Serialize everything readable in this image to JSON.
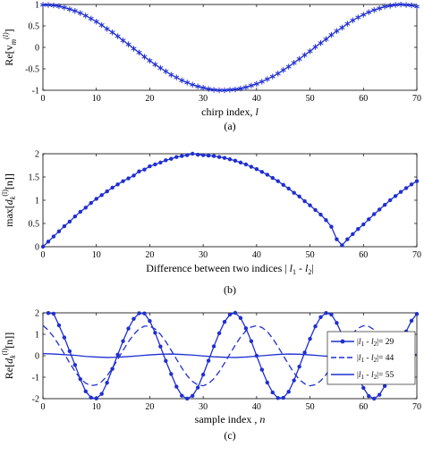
{
  "chart_data": [
    {
      "type": "line",
      "x_range": [
        0,
        70
      ],
      "ylim": [
        -1,
        1
      ],
      "xticks": [
        "0",
        "10",
        "20",
        "30",
        "40",
        "50",
        "60",
        "70"
      ],
      "yticks": [
        "-1",
        "-0.5",
        "0",
        "0.5",
        "1"
      ],
      "xlabel": "chirp index,",
      "xlabel_var": "l",
      "ylabel": "Re[v",
      "ylabel_sub": "m",
      "ylabel_sup": "(l)",
      "ylabel_end": "]",
      "caption": "(a)",
      "marker": "asterisk",
      "color": "#1f2fd1",
      "series": [
        {
          "x": [
            0,
            1,
            2,
            3,
            4,
            5,
            6,
            7,
            8,
            9,
            10,
            11,
            12,
            13,
            14,
            15,
            16,
            17,
            18,
            19,
            20,
            21,
            22,
            23,
            24,
            25,
            26,
            27,
            28,
            29,
            30,
            31,
            32,
            33,
            34,
            35,
            36,
            37,
            38,
            39,
            40,
            41,
            42,
            43,
            44,
            45,
            46,
            47,
            48,
            49,
            50,
            51,
            52,
            53,
            54,
            55,
            56,
            57,
            58,
            59,
            60,
            61,
            62,
            63,
            64,
            65,
            66,
            67,
            68,
            69,
            70
          ],
          "values": [
            0.99,
            0.99,
            0.98,
            0.96,
            0.93,
            0.89,
            0.85,
            0.8,
            0.74,
            0.67,
            0.6,
            0.52,
            0.43,
            0.35,
            0.26,
            0.16,
            0.07,
            -0.03,
            -0.12,
            -0.22,
            -0.31,
            -0.4,
            -0.48,
            -0.56,
            -0.64,
            -0.7,
            -0.77,
            -0.82,
            -0.87,
            -0.91,
            -0.94,
            -0.97,
            -0.99,
            -1.0,
            -1.0,
            -0.99,
            -0.98,
            -0.96,
            -0.93,
            -0.89,
            -0.85,
            -0.8,
            -0.74,
            -0.68,
            -0.61,
            -0.53,
            -0.45,
            -0.36,
            -0.27,
            -0.18,
            -0.09,
            0.01,
            0.1,
            0.19,
            0.29,
            0.38,
            0.46,
            0.55,
            0.63,
            0.7,
            0.76,
            0.82,
            0.87,
            0.91,
            0.95,
            0.97,
            0.99,
            1.0,
            0.99,
            0.98,
            0.95
          ]
        }
      ]
    },
    {
      "type": "line",
      "x_range": [
        0,
        70
      ],
      "ylim": [
        0,
        2
      ],
      "xticks": [
        "0",
        "10",
        "20",
        "30",
        "40",
        "50",
        "60",
        "70"
      ],
      "yticks": [
        "0",
        "0.5",
        "1",
        "1.5",
        "2"
      ],
      "xlabel": "Difference between two indices |",
      "xlabel_mid": " - ",
      "xlabel_var1": "l",
      "xlabel_sub1": "1",
      "xlabel_var2": "l",
      "xlabel_sub2": "2",
      "xlabel_end": "|",
      "ylabel": "max[",
      "ylabel_var": "d",
      "ylabel_sub": "k",
      "ylabel_sup": "(l)",
      "ylabel_end": "[n]]",
      "caption": "(b)",
      "marker": "dot",
      "color": "#1f2fd1",
      "series": [
        {
          "x": [
            0,
            1,
            2,
            3,
            4,
            5,
            6,
            7,
            8,
            9,
            10,
            11,
            12,
            13,
            14,
            15,
            16,
            17,
            18,
            19,
            20,
            21,
            22,
            23,
            24,
            25,
            26,
            27,
            28,
            29,
            30,
            31,
            32,
            33,
            34,
            35,
            36,
            37,
            38,
            39,
            40,
            41,
            42,
            43,
            44,
            45,
            46,
            47,
            48,
            49,
            50,
            51,
            52,
            53,
            54,
            55,
            56,
            57,
            58,
            59,
            60,
            61,
            62,
            63,
            64,
            65,
            66,
            67,
            68,
            69,
            70
          ],
          "values": [
            0.0,
            0.11,
            0.22,
            0.33,
            0.44,
            0.54,
            0.65,
            0.75,
            0.84,
            0.94,
            1.03,
            1.11,
            1.19,
            1.27,
            1.34,
            1.41,
            1.47,
            1.53,
            1.62,
            1.66,
            1.73,
            1.77,
            1.81,
            1.86,
            1.89,
            1.93,
            1.95,
            1.97,
            2.0,
            1.98,
            1.97,
            1.96,
            1.95,
            1.93,
            1.91,
            1.88,
            1.85,
            1.81,
            1.77,
            1.72,
            1.67,
            1.61,
            1.55,
            1.48,
            1.41,
            1.33,
            1.25,
            1.16,
            1.08,
            0.98,
            0.89,
            0.79,
            0.69,
            0.57,
            0.43,
            0.16,
            0.03,
            0.16,
            0.27,
            0.38,
            0.48,
            0.59,
            0.7,
            0.8,
            0.9,
            1.0,
            1.09,
            1.18,
            1.26,
            1.34,
            1.41
          ]
        }
      ]
    },
    {
      "type": "line",
      "x_range": [
        0,
        70
      ],
      "ylim": [
        -2,
        2
      ],
      "xticks": [
        "0",
        "10",
        "20",
        "30",
        "40",
        "50",
        "60",
        "70"
      ],
      "yticks": [
        "-2",
        "-1",
        "0",
        "1",
        "2"
      ],
      "xlabel": "sample index ,",
      "xlabel_var": "n",
      "ylabel": "Re[",
      "ylabel_var": "d",
      "ylabel_sub": "k",
      "ylabel_sup": "(l)",
      "ylabel_end": "[n]]",
      "caption": "(c)",
      "color": "#1f2fd1",
      "legend_position": "right",
      "series": [
        {
          "legend_value": "= 29",
          "style": "solid-dot",
          "x": [
            1,
            2,
            3,
            4,
            5,
            6,
            7,
            8,
            9,
            10,
            11,
            12,
            13,
            14,
            15,
            16,
            17,
            18,
            19,
            20,
            21,
            22,
            23,
            24,
            25,
            26,
            27,
            28,
            29,
            30,
            31,
            32,
            33,
            34,
            35,
            36,
            37,
            38,
            39,
            40,
            41,
            42,
            43,
            44,
            45,
            46,
            47,
            48,
            49,
            50,
            51,
            52,
            53,
            54,
            55,
            56,
            57,
            58,
            59,
            60,
            61,
            62,
            63,
            64,
            65,
            66,
            67,
            68,
            69,
            70
          ],
          "values": [
            1.99,
            1.96,
            1.42,
            0.85,
            0.21,
            -0.43,
            -1.09,
            -1.66,
            -1.95,
            -1.99,
            -1.78,
            -1.26,
            -0.61,
            0.05,
            0.68,
            1.27,
            1.72,
            1.98,
            1.97,
            1.62,
            1.07,
            0.43,
            -0.24,
            -0.85,
            -1.44,
            -1.86,
            -2.0,
            -1.87,
            -1.48,
            -0.88,
            -0.23,
            0.44,
            1.05,
            1.58,
            1.92,
            2.0,
            1.76,
            1.28,
            0.68,
            0.0,
            -0.65,
            -1.25,
            -1.71,
            -1.97,
            -1.96,
            -1.68,
            -1.15,
            -0.51,
            0.15,
            0.79,
            1.37,
            1.8,
            1.99,
            1.92,
            1.53,
            0.98,
            0.33,
            -0.34,
            -0.97,
            -1.5,
            -1.88,
            -2.0,
            -1.82,
            -1.41,
            -0.8,
            -0.13,
            0.53,
            1.13,
            1.63,
            1.95
          ]
        },
        {
          "legend_value": "= 44",
          "style": "dashed",
          "x": [
            0,
            1,
            2,
            3,
            4,
            5,
            6,
            7,
            8,
            9,
            10,
            11,
            12,
            13,
            14,
            15,
            16,
            17,
            18,
            19,
            20,
            21,
            22,
            23,
            24,
            25,
            26,
            27,
            28,
            29,
            30,
            31,
            32,
            33,
            34,
            35,
            36,
            37,
            38,
            39,
            40,
            41,
            42,
            43,
            44,
            45,
            46,
            47,
            48,
            49,
            50,
            51,
            52,
            53,
            54,
            55,
            56,
            57,
            58,
            59,
            60,
            61,
            62,
            63,
            64,
            65,
            66,
            67,
            68,
            69,
            70
          ],
          "values": [
            1.41,
            1.19,
            0.88,
            0.5,
            0.09,
            -0.33,
            -0.73,
            -1.06,
            -1.28,
            -1.39,
            -1.36,
            -1.21,
            -0.94,
            -0.58,
            -0.17,
            0.25,
            0.65,
            0.99,
            1.25,
            1.38,
            1.38,
            1.25,
            1.0,
            0.66,
            0.26,
            -0.16,
            -0.57,
            -0.93,
            -1.2,
            -1.36,
            -1.4,
            -1.3,
            -1.07,
            -0.74,
            -0.34,
            0.08,
            0.49,
            0.87,
            1.16,
            1.34,
            1.4,
            1.32,
            1.13,
            0.81,
            0.43,
            0.01,
            -0.41,
            -0.8,
            -1.11,
            -1.31,
            -1.4,
            -1.35,
            -1.17,
            -0.88,
            -0.51,
            -0.09,
            0.33,
            0.73,
            1.05,
            1.28,
            1.4,
            1.37,
            1.21,
            0.93,
            0.58,
            0.18,
            -0.25,
            -0.65,
            -0.99,
            -1.24,
            -1.38
          ]
        },
        {
          "legend_value": "= 55",
          "style": "solid",
          "x": [
            0,
            2,
            4,
            6,
            8,
            10,
            12,
            14,
            16,
            18,
            20,
            22,
            24,
            26,
            28,
            30,
            32,
            34,
            36,
            38,
            40,
            42,
            44,
            46,
            48,
            50,
            52,
            54,
            56,
            58,
            60,
            62,
            64,
            66,
            68,
            70
          ],
          "values": [
            0.1,
            0.08,
            0.05,
            0.02,
            -0.03,
            -0.06,
            -0.08,
            -0.07,
            -0.04,
            0.0,
            0.04,
            0.07,
            0.08,
            0.06,
            0.03,
            -0.01,
            -0.05,
            -0.07,
            -0.08,
            -0.06,
            -0.02,
            0.02,
            0.06,
            0.08,
            0.07,
            0.04,
            0.0,
            -0.04,
            -0.07,
            -0.08,
            -0.06,
            -0.03,
            0.02,
            0.05,
            0.07,
            0.06
          ]
        }
      ],
      "legend_var1": "l",
      "legend_sub1": "1",
      "legend_var2": "l",
      "legend_sub2": "2"
    }
  ]
}
